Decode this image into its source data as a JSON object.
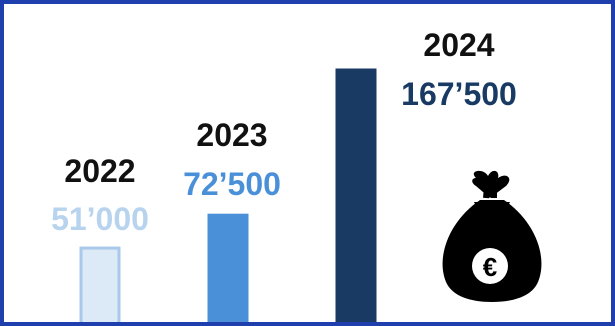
{
  "chart_data": {
    "type": "bar",
    "categories": [
      "2022",
      "2023",
      "2024"
    ],
    "values": [
      51000,
      72500,
      167500
    ],
    "value_labels": [
      "51’000",
      "72’500",
      "167’500"
    ],
    "ylim": [
      0,
      167500
    ],
    "grid": false,
    "bar_colors": [
      "#dce9f6",
      "#4a90d9",
      "#183a63"
    ],
    "bar_edge_colors": [
      "#a9c9ea",
      "#4a90d9",
      "#183a63"
    ],
    "value_colors": [
      "#b7d3ee",
      "#4a90d9",
      "#183a63"
    ],
    "year_color": "#111111"
  },
  "decoration": {
    "icon": "euro-money-bag-icon",
    "symbol": "€",
    "color": "#000000"
  }
}
